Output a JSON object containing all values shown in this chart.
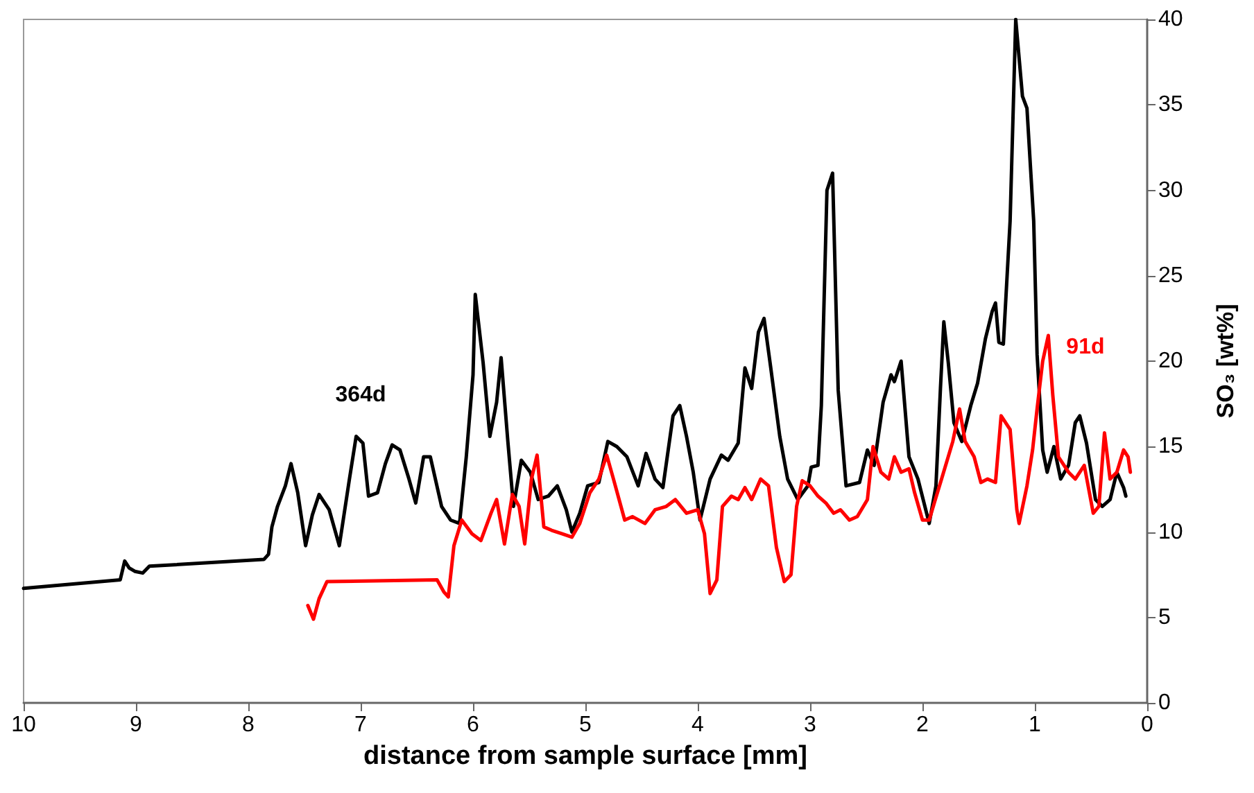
{
  "chart_data": {
    "type": "line",
    "xlabel": "distance from sample surface [mm]",
    "ylabel": "SO₃ [wt%]",
    "xlim": [
      10,
      0
    ],
    "xticks": [
      10,
      9,
      8,
      7,
      6,
      5,
      4,
      3,
      2,
      1,
      0
    ],
    "ylim": [
      0,
      40
    ],
    "yticks": [
      0,
      5,
      10,
      15,
      20,
      25,
      30,
      35,
      40
    ],
    "grid": false,
    "legend": false,
    "marker": "none",
    "line_style": "solid",
    "series": [
      {
        "name": "364d",
        "color": "#000000",
        "x": [
          10,
          9.14,
          9.1,
          9.06,
          9.01,
          8.94,
          8.88,
          7.86,
          7.82,
          7.79,
          7.74,
          7.67,
          7.62,
          7.56,
          7.49,
          7.43,
          7.37,
          7.28,
          7.19,
          7.1,
          7.04,
          6.98,
          6.93,
          6.85,
          6.78,
          6.72,
          6.65,
          6.57,
          6.51,
          6.44,
          6.38,
          6.28,
          6.2,
          6.12,
          6.06,
          6.0,
          5.98,
          5.91,
          5.85,
          5.79,
          5.75,
          5.69,
          5.64,
          5.57,
          5.49,
          5.42,
          5.33,
          5.25,
          5.17,
          5.12,
          5.05,
          4.98,
          4.88,
          4.8,
          4.72,
          4.63,
          4.53,
          4.46,
          4.38,
          4.31,
          4.22,
          4.16,
          4.1,
          4.04,
          3.98,
          3.89,
          3.79,
          3.73,
          3.64,
          3.58,
          3.52,
          3.46,
          3.41,
          3.35,
          3.27,
          3.2,
          3.11,
          3.02,
          2.99,
          2.93,
          2.9,
          2.85,
          2.8,
          2.75,
          2.68,
          2.56,
          2.49,
          2.43,
          2.35,
          2.28,
          2.25,
          2.19,
          2.12,
          2.04,
          1.94,
          1.88,
          1.84,
          1.81,
          1.77,
          1.72,
          1.65,
          1.57,
          1.51,
          1.44,
          1.38,
          1.35,
          1.32,
          1.28,
          1.22,
          1.17,
          1.11,
          1.07,
          1.01,
          0.98,
          0.93,
          0.89,
          0.83,
          0.77,
          0.7,
          0.64,
          0.6,
          0.54,
          0.46,
          0.4,
          0.33,
          0.27,
          0.21,
          0.19
        ],
        "values": [
          6.7,
          7.2,
          8.3,
          7.9,
          7.7,
          7.6,
          8.0,
          8.4,
          8.7,
          10.3,
          11.5,
          12.7,
          14.0,
          12.3,
          9.2,
          11.0,
          12.2,
          11.3,
          9.2,
          13.1,
          15.6,
          15.2,
          12.1,
          12.3,
          14.0,
          15.1,
          14.8,
          13.1,
          11.7,
          14.4,
          14.4,
          11.5,
          10.7,
          10.5,
          14.4,
          19.2,
          23.9,
          19.9,
          15.6,
          17.6,
          20.2,
          15.3,
          11.5,
          14.2,
          13.5,
          11.9,
          12.1,
          12.7,
          11.3,
          10.0,
          11.1,
          12.7,
          12.9,
          15.3,
          15.0,
          14.4,
          12.7,
          14.6,
          13.1,
          12.6,
          16.8,
          17.4,
          15.6,
          13.5,
          10.7,
          13.1,
          14.5,
          14.2,
          15.2,
          19.6,
          18.4,
          21.7,
          22.5,
          19.6,
          15.6,
          13.1,
          11.9,
          12.7,
          13.8,
          13.9,
          17.4,
          30.0,
          31.0,
          18.3,
          12.7,
          12.9,
          14.8,
          13.9,
          17.6,
          19.2,
          18.8,
          20.0,
          14.4,
          13.1,
          10.5,
          12.7,
          18.4,
          22.3,
          19.9,
          16.4,
          15.3,
          17.4,
          18.7,
          21.3,
          22.9,
          23.4,
          21.1,
          21.0,
          28.2,
          40.0,
          35.5,
          34.8,
          28.2,
          20.4,
          14.8,
          13.5,
          15.0,
          13.1,
          13.9,
          16.4,
          16.8,
          15.2,
          11.9,
          11.5,
          11.9,
          13.5,
          12.6,
          12.1
        ]
      },
      {
        "name": "91d",
        "color": "#ff0000",
        "x": [
          7.47,
          7.42,
          7.37,
          7.3,
          6.32,
          6.26,
          6.22,
          6.17,
          6.1,
          6.01,
          5.93,
          5.84,
          5.79,
          5.72,
          5.65,
          5.59,
          5.54,
          5.48,
          5.43,
          5.37,
          5.3,
          5.21,
          5.12,
          5.05,
          4.96,
          4.88,
          4.81,
          4.75,
          4.65,
          4.58,
          4.47,
          4.38,
          4.28,
          4.2,
          4.1,
          4.0,
          3.94,
          3.89,
          3.83,
          3.78,
          3.7,
          3.64,
          3.58,
          3.52,
          3.44,
          3.37,
          3.3,
          3.23,
          3.17,
          3.12,
          3.07,
          3.0,
          2.93,
          2.86,
          2.79,
          2.73,
          2.65,
          2.58,
          2.49,
          2.44,
          2.37,
          2.3,
          2.25,
          2.19,
          2.12,
          2.07,
          2.0,
          1.94,
          1.89,
          1.83,
          1.73,
          1.67,
          1.62,
          1.54,
          1.48,
          1.42,
          1.35,
          1.3,
          1.22,
          1.16,
          1.14,
          1.07,
          1.02,
          0.98,
          0.93,
          0.88,
          0.84,
          0.79,
          0.7,
          0.64,
          0.56,
          0.48,
          0.43,
          0.38,
          0.33,
          0.27,
          0.21,
          0.17,
          0.15
        ],
        "values": [
          5.7,
          4.9,
          6.1,
          7.1,
          7.2,
          6.5,
          6.2,
          9.2,
          10.7,
          9.9,
          9.5,
          11.1,
          11.9,
          9.3,
          12.2,
          11.5,
          9.3,
          13.1,
          14.5,
          10.3,
          10.1,
          9.9,
          9.7,
          10.5,
          12.3,
          13.1,
          14.5,
          13.1,
          10.7,
          10.9,
          10.5,
          11.3,
          11.5,
          11.9,
          11.1,
          11.3,
          9.9,
          6.4,
          7.2,
          11.5,
          12.1,
          11.9,
          12.6,
          11.9,
          13.1,
          12.7,
          9.1,
          7.1,
          7.5,
          11.5,
          13.0,
          12.7,
          12.1,
          11.7,
          11.1,
          11.3,
          10.7,
          10.9,
          11.9,
          15.0,
          13.5,
          13.1,
          14.4,
          13.5,
          13.7,
          12.3,
          10.7,
          10.7,
          11.8,
          13.1,
          15.3,
          17.2,
          15.3,
          14.4,
          12.9,
          13.1,
          12.9,
          16.8,
          16.0,
          11.3,
          10.5,
          12.7,
          14.8,
          17.2,
          20.0,
          21.5,
          18.0,
          14.4,
          13.5,
          13.1,
          13.9,
          11.1,
          11.5,
          15.8,
          13.1,
          13.5,
          14.8,
          14.4,
          13.5
        ]
      }
    ]
  }
}
